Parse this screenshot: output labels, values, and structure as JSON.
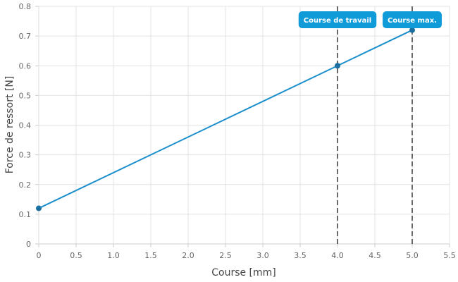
{
  "chart_data": {
    "type": "line",
    "xlabel": "Course [mm]",
    "ylabel": "Force de ressort [N]",
    "xlim": [
      0,
      5.5
    ],
    "ylim": [
      0,
      0.8
    ],
    "xticks": [
      "0",
      "0.5",
      "1.0",
      "1.5",
      "2.0",
      "2.5",
      "3.0",
      "3.5",
      "4.0",
      "4.5",
      "5.0",
      "5.5"
    ],
    "yticks": [
      "0",
      "0.1",
      "0.2",
      "0.3",
      "0.4",
      "0.5",
      "0.6",
      "0.7",
      "0.8"
    ],
    "grid": true,
    "series": [
      {
        "x": [
          0,
          4.0,
          5.0
        ],
        "values": [
          0.12,
          0.6,
          0.72
        ],
        "color": "#1b8fcc"
      }
    ],
    "annotations": [
      {
        "label": "Course de travail",
        "x": 4.0,
        "style": "dashed-vertical-line"
      },
      {
        "label": "Course max.",
        "x": 5.0,
        "style": "dashed-vertical-line"
      }
    ],
    "colors": {
      "line": "#1b8fcc",
      "badge": "#0f9ad8",
      "marker": "#1a6fa0",
      "refline": "#444444"
    }
  }
}
